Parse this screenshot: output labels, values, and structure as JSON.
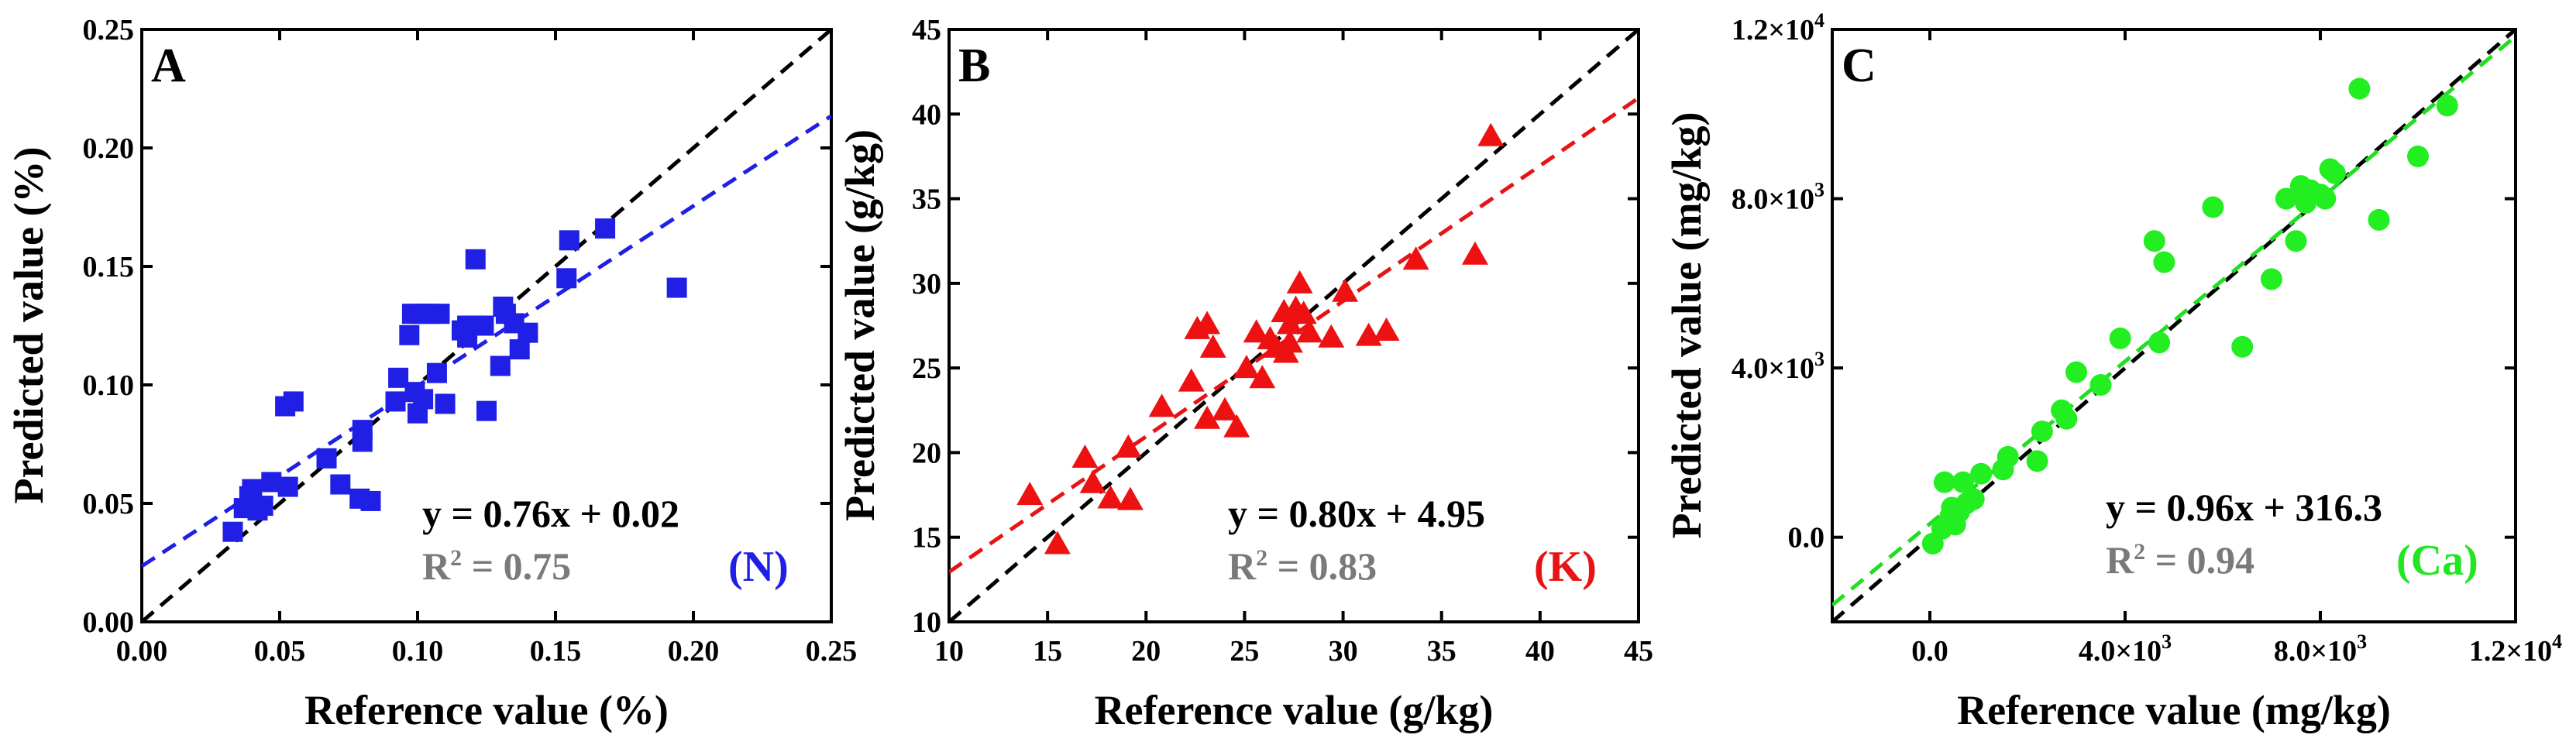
{
  "chart_data": [
    {
      "type": "scatter",
      "panel": "A",
      "element": "(N)",
      "element_color": "#1f1fe6",
      "marker": "square",
      "marker_color": "#1f1fe6",
      "fit_color": "#1f1fe6",
      "xlabel": "Reference value (%)",
      "ylabel": "Predicted value (%)",
      "xlim": [
        0,
        0.25
      ],
      "ylim": [
        0,
        0.25
      ],
      "xticks": [
        0,
        0.05,
        0.1,
        0.15,
        0.2,
        0.25
      ],
      "yticks": [
        0,
        0.05,
        0.1,
        0.15,
        0.2,
        0.25
      ],
      "xtick_labels": [
        "0.00",
        "0.05",
        "0.10",
        "0.15",
        "0.20",
        "0.25"
      ],
      "ytick_labels": [
        "0.00",
        "0.05",
        "0.10",
        "0.15",
        "0.20",
        "0.25"
      ],
      "equation": "y = 0.76x + 0.02",
      "r2_prefix": "R",
      "r2_sup": "2",
      "r2_value": " = 0.75",
      "fit": {
        "slope": 0.76,
        "intercept": 0.0235
      },
      "x": [
        0.033,
        0.037,
        0.039,
        0.04,
        0.042,
        0.044,
        0.047,
        0.052,
        0.053,
        0.055,
        0.067,
        0.072,
        0.079,
        0.08,
        0.08,
        0.083,
        0.092,
        0.093,
        0.097,
        0.098,
        0.099,
        0.1,
        0.101,
        0.102,
        0.104,
        0.107,
        0.108,
        0.11,
        0.116,
        0.118,
        0.118,
        0.121,
        0.124,
        0.125,
        0.13,
        0.131,
        0.132,
        0.135,
        0.137,
        0.14,
        0.154,
        0.155,
        0.168,
        0.194
      ],
      "y": [
        0.038,
        0.048,
        0.053,
        0.056,
        0.047,
        0.049,
        0.059,
        0.091,
        0.057,
        0.093,
        0.069,
        0.058,
        0.052,
        0.081,
        0.076,
        0.051,
        0.093,
        0.103,
        0.121,
        0.13,
        0.097,
        0.088,
        0.13,
        0.094,
        0.13,
        0.105,
        0.13,
        0.092,
        0.123,
        0.125,
        0.12,
        0.153,
        0.125,
        0.089,
        0.108,
        0.133,
        0.13,
        0.126,
        0.115,
        0.122,
        0.145,
        0.161,
        0.166,
        0.141
      ]
    },
    {
      "type": "scatter",
      "panel": "B",
      "element": "(K)",
      "element_color": "#e61414",
      "marker": "triangle",
      "marker_color": "#ee1111",
      "fit_color": "#e61414",
      "xlabel": "Reference value (g/kg)",
      "ylabel": "Predicted value (g/kg)",
      "xlim": [
        10,
        45
      ],
      "ylim": [
        10,
        45
      ],
      "xticks": [
        10,
        15,
        20,
        25,
        30,
        35,
        40,
        45
      ],
      "yticks": [
        10,
        15,
        20,
        25,
        30,
        35,
        40,
        45
      ],
      "xtick_labels": [
        "10",
        "15",
        "20",
        "25",
        "30",
        "35",
        "40",
        "45"
      ],
      "ytick_labels": [
        "10",
        "15",
        "20",
        "25",
        "30",
        "35",
        "40",
        "45"
      ],
      "equation": "y = 0.80x + 4.95",
      "r2_prefix": "R",
      "r2_sup": "2",
      "r2_value": " = 0.83",
      "fit": {
        "slope": 0.8,
        "intercept": 4.95
      },
      "x": [
        14.1,
        15.5,
        16.9,
        17.3,
        18.2,
        19.1,
        19.2,
        20.8,
        22.3,
        22.6,
        23.1,
        23.1,
        23.4,
        24.0,
        24.6,
        25.1,
        25.6,
        25.9,
        26.3,
        26.6,
        27.0,
        27.1,
        27.3,
        27.3,
        27.6,
        27.8,
        28.0,
        28.3,
        29.4,
        30.1,
        31.3,
        32.2,
        33.7,
        36.7,
        37.5
      ],
      "y": [
        17.5,
        14.6,
        19.7,
        18.2,
        17.3,
        20.3,
        17.2,
        22.7,
        24.2,
        27.3,
        27.6,
        22.0,
        26.2,
        22.5,
        21.5,
        25.0,
        27.1,
        24.4,
        26.7,
        26.2,
        28.3,
        25.9,
        26.5,
        27.6,
        28.5,
        30.0,
        28.2,
        27.1,
        26.8,
        29.5,
        26.9,
        27.2,
        31.4,
        31.7,
        38.7
      ]
    },
    {
      "type": "scatter",
      "panel": "C",
      "element": "(Ca)",
      "element_color": "#22e622",
      "marker": "circle",
      "marker_color": "#22ee22",
      "fit_color": "#22dd22",
      "xlabel": "Reference value (mg/kg)",
      "ylabel": "Predicted value (mg/kg)",
      "xlim": [
        -2000,
        12000
      ],
      "ylim": [
        -2000,
        12000
      ],
      "xticks": [
        0,
        4000,
        8000,
        12000
      ],
      "yticks": [
        0,
        4000,
        8000,
        12000
      ],
      "xtick_labels": [
        "0.0",
        "4.0×10",
        "8.0×10",
        "1.2×10"
      ],
      "ytick_labels": [
        "0.0",
        "4.0×10",
        "8.0×10",
        "1.2×10"
      ],
      "tick_exponents": [
        "",
        "3",
        "3",
        "4"
      ],
      "equation": "y = 0.96x + 316.3",
      "r2_prefix": "R",
      "r2_sup": "2",
      "r2_value": " = 0.94",
      "fit": {
        "slope": 0.96,
        "intercept": 316.3
      },
      "x": [
        60,
        250,
        300,
        420,
        450,
        520,
        600,
        680,
        750,
        900,
        1050,
        1500,
        1600,
        2200,
        2300,
        2700,
        2800,
        3000,
        3500,
        3900,
        4600,
        4700,
        4800,
        5800,
        6400,
        7000,
        7300,
        7500,
        7600,
        7700,
        7800,
        8000,
        8100,
        8200,
        8300,
        8800,
        9200,
        10000,
        10600
      ],
      "y": [
        -150,
        200,
        1300,
        500,
        700,
        300,
        600,
        1300,
        800,
        900,
        1500,
        1600,
        1900,
        1800,
        2500,
        3000,
        2800,
        3900,
        3600,
        4700,
        7000,
        4600,
        6500,
        7800,
        4500,
        6100,
        8000,
        7000,
        8300,
        7900,
        8200,
        8100,
        8000,
        8700,
        8600,
        10600,
        7500,
        9000,
        10200
      ]
    }
  ]
}
